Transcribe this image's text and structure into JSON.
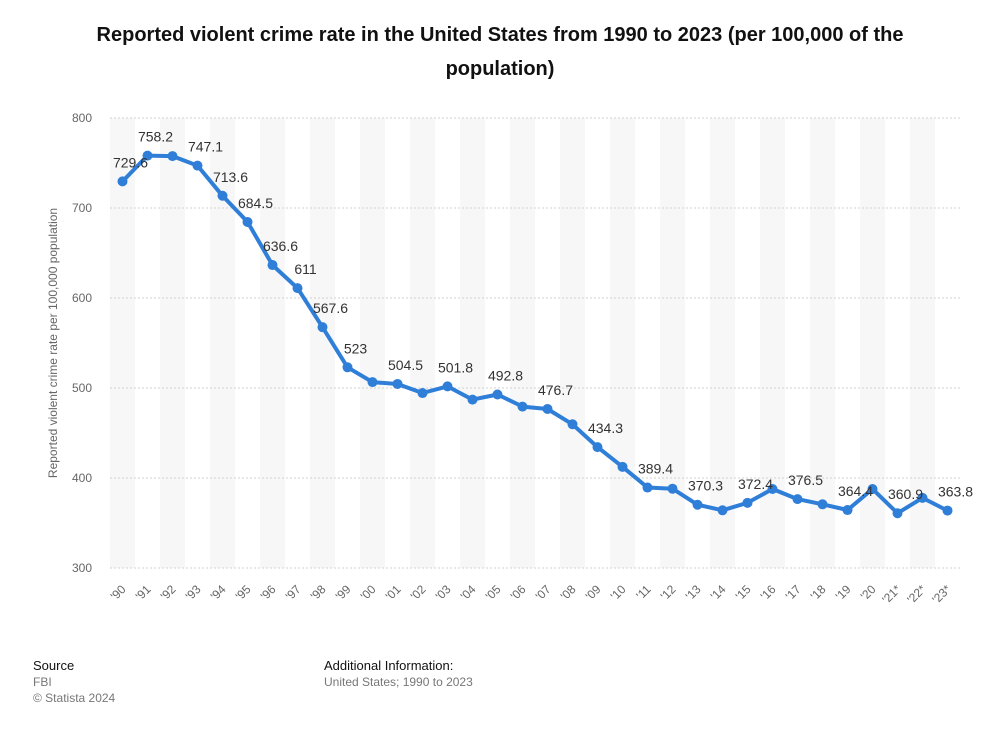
{
  "chart_data": {
    "type": "line",
    "title": "Reported violent crime rate in the United States from 1990 to 2023 (per 100,000 of the population)",
    "ylabel": "Reported violent crime rate per 100,000 population",
    "xlabel": "",
    "ylim": [
      300,
      800
    ],
    "yticks": [
      300,
      400,
      500,
      600,
      700,
      800
    ],
    "grid": true,
    "legend": "none",
    "categories": [
      "'90",
      "'91",
      "'92",
      "'93",
      "'94",
      "'95",
      "'96",
      "'97",
      "'98",
      "'99",
      "'00",
      "'01",
      "'02",
      "'03",
      "'04",
      "'05",
      "'06",
      "'07",
      "'08",
      "'09",
      "'10",
      "'11",
      "'12",
      "'13",
      "'14",
      "'15",
      "'16",
      "'17",
      "'18",
      "'19",
      "'20",
      "'21*",
      "'22*",
      "'23*"
    ],
    "series": [
      {
        "name": "",
        "color": "#2f7ed8",
        "values": [
          729.6,
          758.2,
          757.7,
          747.1,
          713.6,
          684.5,
          636.6,
          611,
          567.6,
          523,
          506.5,
          504.5,
          494.4,
          501.8,
          487.1,
          492.8,
          479.3,
          476.7,
          459.7,
          434.3,
          412.4,
          389.4,
          388.1,
          370.3,
          364.1,
          372.4,
          387.8,
          376.5,
          370.8,
          364.4,
          387.8,
          360.9,
          377.9,
          363.8
        ],
        "labels": [
          "729.6",
          "758.2",
          "",
          "747.1",
          "713.6",
          "684.5",
          "636.6",
          "611",
          "567.6",
          "523",
          "",
          "504.5",
          "",
          "501.8",
          "",
          "492.8",
          "",
          "476.7",
          "",
          "434.3",
          "",
          "389.4",
          "",
          "370.3",
          "",
          "372.4",
          "",
          "376.5",
          "",
          "364.4",
          "",
          "360.9",
          "",
          "363.8"
        ]
      }
    ]
  },
  "footer": {
    "source_heading": "Source",
    "source_name": "FBI",
    "copyright": "© Statista 2024",
    "info_heading": "Additional Information:",
    "info_text": "United States; 1990 to 2023"
  }
}
